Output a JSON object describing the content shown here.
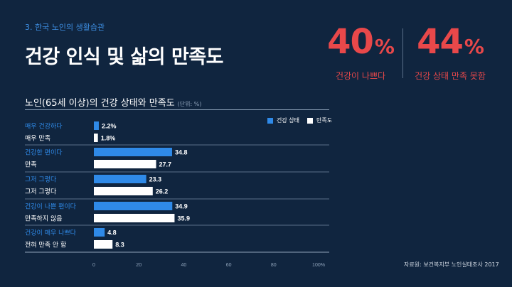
{
  "header": {
    "section": "3. 한국 노인의 생활습관",
    "title": "건강 인식 및 삶의 만족도"
  },
  "stats": [
    {
      "number": "40",
      "unit": "%",
      "label": "건강이 나쁘다"
    },
    {
      "number": "44",
      "unit": "%",
      "label": "건강 상태 만족 못함"
    }
  ],
  "chart_title": "노인(65세 이상)의 건강 상태와 만족도",
  "chart_unit": "(단위: %)",
  "colors": {
    "health": "#2f8ae8",
    "satisfaction": "#ffffff",
    "accent": "#e8484a",
    "background": "#10253f"
  },
  "source": "자료원: 보건복지부 노인실태조사 2017",
  "chart_data": {
    "type": "bar",
    "orientation": "horizontal",
    "series": [
      {
        "name": "건강 상태",
        "color": "#2f8ae8",
        "labels": [
          "매우 건강하다",
          "건강한 편이다",
          "그저 그렇다",
          "건강이 나쁜 편이다",
          "건강이 매우 나쁘다"
        ],
        "values": [
          2.2,
          34.8,
          23.3,
          34.9,
          4.8
        ],
        "value_labels": [
          "2.2%",
          "34.8",
          "23.3",
          "34.9",
          "4.8"
        ]
      },
      {
        "name": "만족도",
        "color": "#ffffff",
        "labels": [
          "매우 만족",
          "만족",
          "그저 그렇다",
          "만족하지 않음",
          "전혀 만족 안 함"
        ],
        "values": [
          1.8,
          27.7,
          26.2,
          35.9,
          8.3
        ],
        "value_labels": [
          "1.8%",
          "27.7",
          "26.2",
          "35.9",
          "8.3"
        ]
      }
    ],
    "xlim": [
      0,
      100
    ],
    "xticks": [
      "0",
      "20",
      "40",
      "60",
      "80",
      "100%"
    ],
    "legend": "top-right"
  }
}
